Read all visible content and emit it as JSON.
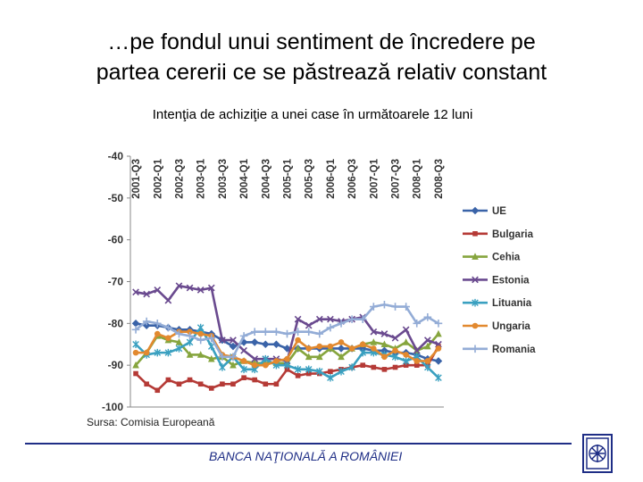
{
  "slide": {
    "title_line1": "…pe fondul unui sentiment de încredere pe",
    "title_line2": "partea cererii ce se păstrează relativ constant",
    "source": "Sursa: Comisia Europeană",
    "footer": "BANCA NAŢIONALĂ A ROMÂNIEI"
  },
  "chart_data": {
    "type": "line",
    "title": "Intenţia de achiziţie a unei case în următoarele 12 luni",
    "xlabel": "",
    "ylabel": "",
    "ylim": [
      -100,
      -40
    ],
    "yticks": [
      -40,
      -50,
      -60,
      -70,
      -80,
      -90,
      -100
    ],
    "grid": false,
    "legend_position": "right",
    "x_tick_labels": [
      "2001-Q3",
      "2002-Q1",
      "2002-Q3",
      "2003-Q1",
      "2003-Q3",
      "2004-Q1",
      "2004-Q3",
      "2005-Q1",
      "2005-Q3",
      "2006-Q1",
      "2006-Q3",
      "2007-Q1",
      "2007-Q3",
      "2008-Q1",
      "2008-Q3"
    ],
    "x_tick_every": 2,
    "categories": [
      "2001-Q3",
      "2001-Q4",
      "2002-Q1",
      "2002-Q2",
      "2002-Q3",
      "2002-Q4",
      "2003-Q1",
      "2003-Q2",
      "2003-Q3",
      "2003-Q4",
      "2004-Q1",
      "2004-Q2",
      "2004-Q3",
      "2004-Q4",
      "2005-Q1",
      "2005-Q2",
      "2005-Q3",
      "2005-Q4",
      "2006-Q1",
      "2006-Q2",
      "2006-Q3",
      "2006-Q4",
      "2007-Q1",
      "2007-Q2",
      "2007-Q3",
      "2007-Q4",
      "2008-Q1",
      "2008-Q2",
      "2008-Q3"
    ],
    "series": [
      {
        "name": "UE",
        "color": "#3a63a8",
        "marker": "diamond",
        "values": [
          -80,
          -80.5,
          -80.5,
          -81,
          -81.5,
          -81.5,
          -82,
          -82.5,
          -84,
          -85.5,
          -84.5,
          -84.5,
          -85,
          -85,
          -86,
          -86,
          -86,
          -86,
          -86,
          -86,
          -86,
          -86,
          -86.5,
          -86.5,
          -87,
          -87,
          -87.5,
          -88.5,
          -89
        ]
      },
      {
        "name": "Bulgaria",
        "color": "#b53a36",
        "marker": "square",
        "values": [
          -92,
          -94.5,
          -96,
          -93.5,
          -94.5,
          -93.5,
          -94.5,
          -95.5,
          -94.5,
          -94.5,
          -93,
          -93.5,
          -94.5,
          -94.5,
          -91,
          -92.5,
          -92,
          -92,
          -91.5,
          -91,
          -90.5,
          -90,
          -90.5,
          -91,
          -90.5,
          -90,
          -90,
          -90,
          -85.5
        ]
      },
      {
        "name": "Cehia",
        "color": "#86a53e",
        "marker": "triangle",
        "values": [
          -90,
          -87,
          -83,
          -84,
          -84.5,
          -87.5,
          -87.5,
          -88.5,
          -88,
          -90,
          -89,
          -89.5,
          -89.5,
          -89.5,
          -89.5,
          -86,
          -88,
          -88,
          -86,
          -88,
          -86,
          -85,
          -84.5,
          -85,
          -86,
          -84.5,
          -86.5,
          -85.5,
          -82.5
        ]
      },
      {
        "name": "Estonia",
        "color": "#6a4a8f",
        "marker": "x",
        "values": [
          -72.5,
          -73,
          -72,
          -74.5,
          -71,
          -71.5,
          -72,
          -71.5,
          -84,
          -84,
          -86.5,
          -88.5,
          -88.5,
          -88.5,
          -89,
          -79,
          -80.5,
          -79,
          -79,
          -79.5,
          -79,
          -78.5,
          -82,
          -82.5,
          -83.5,
          -81.5,
          -86.5,
          -84,
          -85
        ]
      },
      {
        "name": "Lituania",
        "color": "#3aa0c0",
        "marker": "asterisk",
        "values": [
          -85,
          -87.5,
          -87,
          -87,
          -86,
          -84.5,
          -81,
          -85.5,
          -90.5,
          -88,
          -91,
          -91,
          -88.5,
          -90,
          -90,
          -91,
          -91,
          -91.5,
          -93,
          -91.5,
          -90.5,
          -87,
          -87,
          -87.5,
          -88,
          -89,
          -88,
          -90.5,
          -93
        ]
      },
      {
        "name": "Ungaria",
        "color": "#e2892f",
        "marker": "circle",
        "values": [
          -87,
          -87,
          -82.5,
          -83.5,
          -82,
          -82,
          -82.5,
          -83,
          -87.5,
          -88,
          -89,
          -90,
          -90,
          -89,
          -88.5,
          -84,
          -86,
          -85.5,
          -85.5,
          -84.5,
          -86,
          -85,
          -86,
          -88,
          -86.5,
          -87.5,
          -89,
          -89,
          -86
        ]
      },
      {
        "name": "Romania",
        "color": "#93acd6",
        "marker": "plus",
        "values": [
          -81.5,
          -79.5,
          -80,
          -81,
          -82.5,
          -83,
          -84,
          -83.5,
          -88,
          -88,
          -83,
          -82,
          -82,
          -82,
          -82.5,
          -82,
          -82,
          -82.5,
          -81,
          -80,
          -79,
          -79,
          -76,
          -75.5,
          -76,
          -76,
          -80,
          -78.5,
          -80
        ]
      }
    ]
  }
}
